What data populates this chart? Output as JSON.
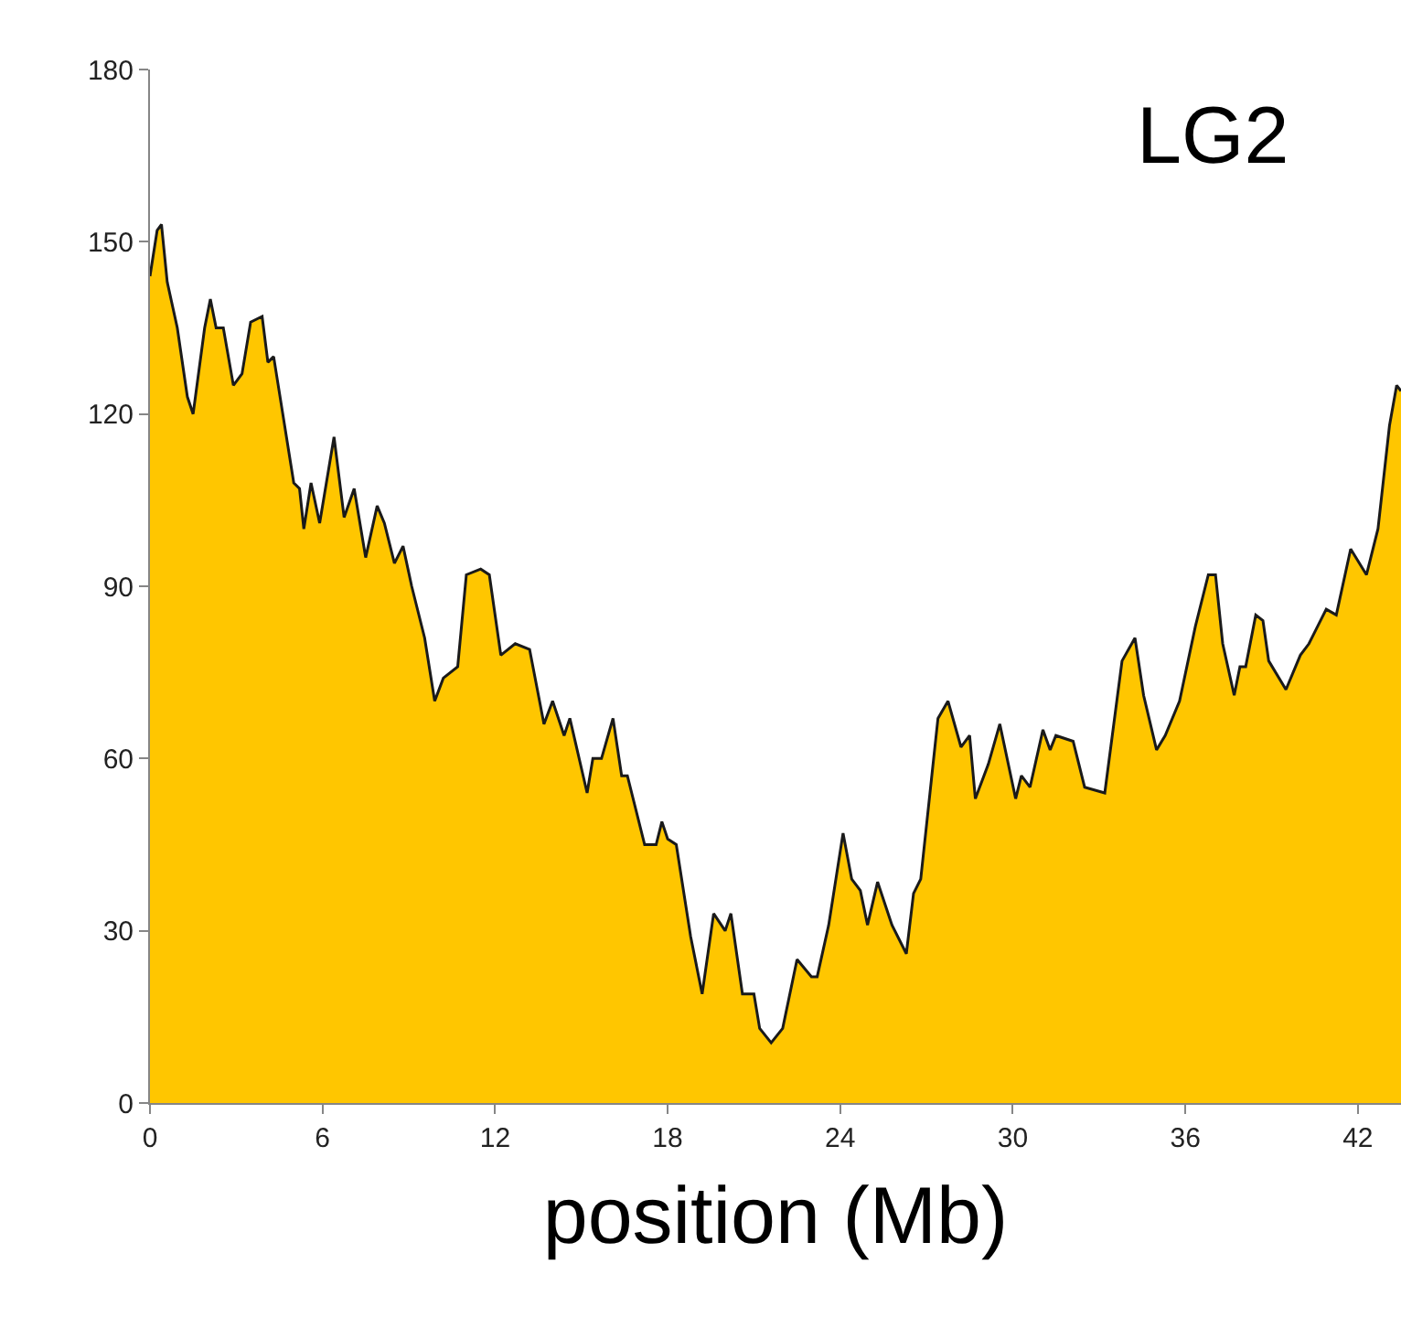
{
  "chart_data": {
    "type": "area",
    "title": "LG2",
    "xlabel": "position (Mb)",
    "x": [
      0,
      0.25,
      0.4,
      0.6,
      0.95,
      1.3,
      1.5,
      1.9,
      2.1,
      2.3,
      2.55,
      2.9,
      3.2,
      3.5,
      3.9,
      4.1,
      4.3,
      5.0,
      5.2,
      5.35,
      5.6,
      5.9,
      6.4,
      6.75,
      7.1,
      7.5,
      7.9,
      8.15,
      8.5,
      8.8,
      9.1,
      9.55,
      9.9,
      10.2,
      10.7,
      11.0,
      11.5,
      11.8,
      12.2,
      12.7,
      13.2,
      13.7,
      14.0,
      14.4,
      14.6,
      15.2,
      15.4,
      15.7,
      16.1,
      16.4,
      16.6,
      17.2,
      17.6,
      17.8,
      18.0,
      18.3,
      18.8,
      19.2,
      19.6,
      20.0,
      20.2,
      20.6,
      21.0,
      21.2,
      21.6,
      22.0,
      22.5,
      23.0,
      23.2,
      23.6,
      24.1,
      24.4,
      24.7,
      24.95,
      25.3,
      25.8,
      26.3,
      26.55,
      26.8,
      27.4,
      27.75,
      28.2,
      28.5,
      28.7,
      29.15,
      29.55,
      30.1,
      30.3,
      30.6,
      31.05,
      31.3,
      31.5,
      32.1,
      32.5,
      33.2,
      33.8,
      34.25,
      34.55,
      35.0,
      35.3,
      35.8,
      36.35,
      36.8,
      37.05,
      37.3,
      37.7,
      37.9,
      38.1,
      38.45,
      38.7,
      38.9,
      39.5,
      40.0,
      40.3,
      40.6,
      40.9,
      41.25,
      41.75,
      42.3,
      42.7,
      43.1,
      43.35,
      43.5
    ],
    "series": [
      {
        "color": "#ffc600",
        "values": [
          144,
          152,
          153,
          143,
          135,
          123,
          120,
          135,
          140,
          135,
          135,
          125,
          127,
          136,
          137,
          129,
          130,
          108,
          107,
          100,
          108,
          101,
          116,
          102,
          107,
          95,
          104,
          101,
          94,
          97,
          90,
          81,
          70,
          74,
          76,
          92,
          93,
          92,
          78,
          80,
          79,
          66,
          70,
          64,
          67,
          54,
          60,
          60,
          67,
          57,
          57,
          45,
          45,
          49,
          46,
          45,
          29,
          19,
          33,
          30,
          33,
          19,
          19,
          13,
          10.5,
          13,
          25,
          22,
          22,
          31,
          47,
          39,
          37,
          31,
          38.5,
          31,
          26,
          36.5,
          39,
          67,
          70,
          62,
          64,
          53,
          59,
          66,
          53,
          57,
          55,
          65,
          61.5,
          64,
          63,
          55,
          54,
          77,
          81,
          71,
          61.5,
          64,
          70,
          83,
          92,
          92,
          80,
          71,
          76,
          76,
          85,
          84,
          77,
          72,
          78,
          80,
          83,
          86,
          85,
          96.5,
          92,
          100,
          118,
          125,
          124
        ]
      }
    ],
    "xlim": [
      0,
      43.5
    ],
    "ylim": [
      0,
      180
    ],
    "xticks": [
      0,
      6,
      12,
      18,
      24,
      30,
      36,
      42
    ],
    "yticks": [
      0,
      30,
      60,
      90,
      120,
      150,
      180
    ]
  }
}
